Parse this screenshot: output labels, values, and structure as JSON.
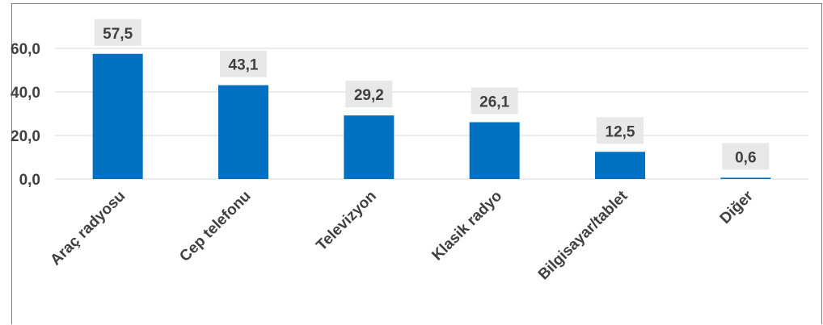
{
  "chart_data": {
    "type": "bar",
    "categories": [
      "Araç radyosu",
      "Cep telefonu",
      "Televizyon",
      "Klasik radyo",
      "Bilgisayar/tablet",
      "Diğer"
    ],
    "values": [
      57.5,
      43.1,
      29.2,
      26.1,
      12.5,
      0.6
    ],
    "value_labels": [
      "57,5",
      "43,1",
      "29,2",
      "26,1",
      "12,5",
      "0,6"
    ],
    "yticks": [
      0,
      20,
      40,
      60
    ],
    "ytick_labels": [
      "0,0",
      "20,0",
      "40,0",
      "60,0"
    ],
    "ylim": [
      0,
      70
    ],
    "grid": true,
    "legend": "none",
    "bar_color": "#0070c0",
    "label_background": "#e8e8e8",
    "grid_color": "#d9d9d9"
  }
}
